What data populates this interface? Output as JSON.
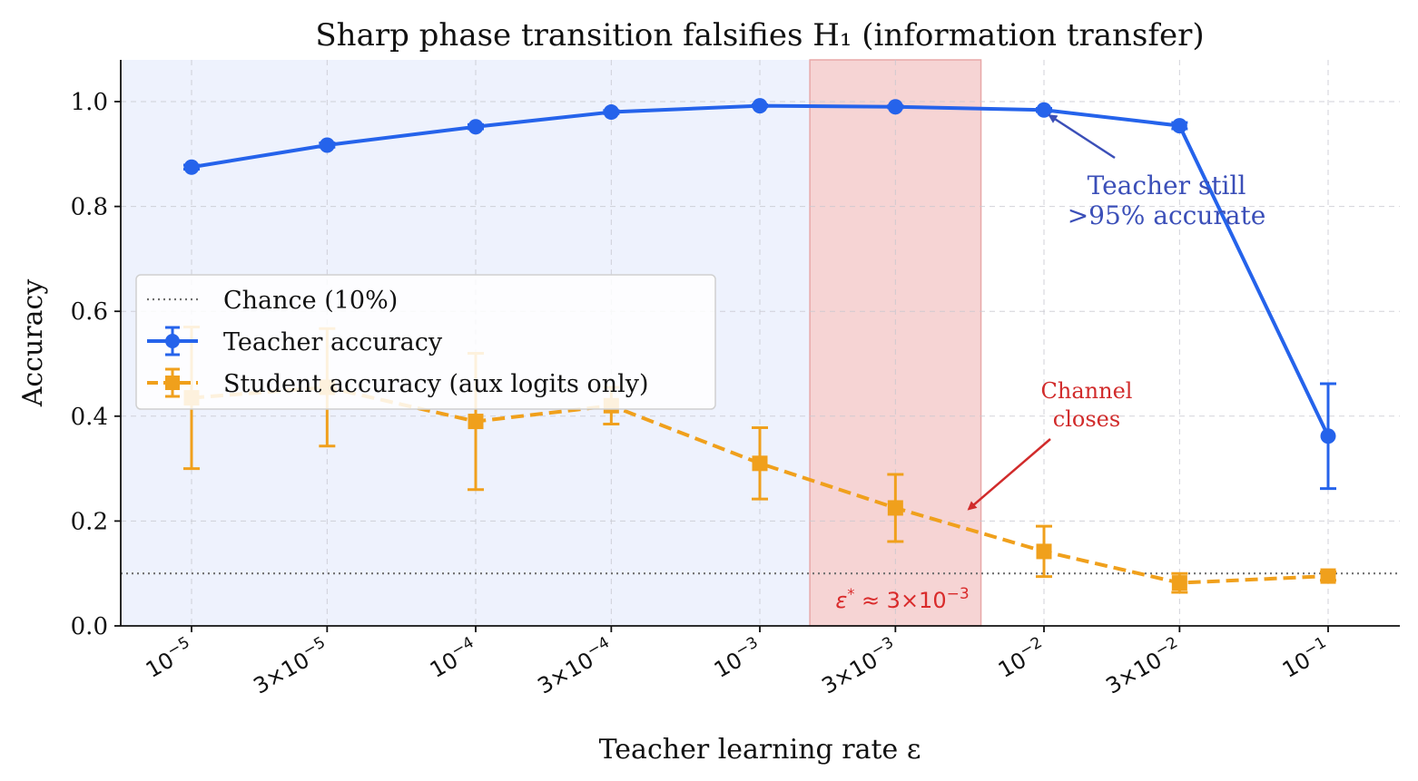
{
  "chart_data": {
    "type": "line",
    "title": "Sharp phase transition falsifies H₁ (information transfer)",
    "xlabel": "Teacher learning rate ε",
    "ylabel": "Accuracy",
    "x_scale": "log",
    "ylim": [
      0.0,
      1.08
    ],
    "grid": true,
    "legend_position": "center-left",
    "x": [
      1e-05,
      3e-05,
      0.0001,
      0.0003,
      0.001,
      0.003,
      0.01,
      0.03,
      0.1
    ],
    "x_tick_labels": [
      {
        "base": "10",
        "exp": "−5"
      },
      {
        "base": "3×10",
        "exp": "−5"
      },
      {
        "base": "10",
        "exp": "−4"
      },
      {
        "base": "3×10",
        "exp": "−4"
      },
      {
        "base": "10",
        "exp": "−3"
      },
      {
        "base": "3×10",
        "exp": "−3"
      },
      {
        "base": "10",
        "exp": "−2"
      },
      {
        "base": "3×10",
        "exp": "−2"
      },
      {
        "base": "10",
        "exp": "−1"
      }
    ],
    "y_ticks": [
      0.0,
      0.2,
      0.4,
      0.6,
      0.8,
      1.0
    ],
    "y_tick_labels": [
      "0.0",
      "0.2",
      "0.4",
      "0.6",
      "0.8",
      "1.0"
    ],
    "series": [
      {
        "name": "Teacher accuracy",
        "color": "#2563eb",
        "marker": "circle",
        "line_style": "solid",
        "values": [
          0.875,
          0.917,
          0.952,
          0.98,
          0.992,
          0.99,
          0.984,
          0.954,
          0.362
        ],
        "error": [
          0.004,
          0.004,
          0.004,
          0.003,
          0.002,
          0.002,
          0.003,
          0.006,
          0.1
        ]
      },
      {
        "name": "Student accuracy (aux logits only)",
        "color": "#f0a01c",
        "marker": "square",
        "line_style": "dashed",
        "values": [
          0.435,
          0.455,
          0.39,
          0.42,
          0.31,
          0.225,
          0.142,
          0.082,
          0.095
        ],
        "error": [
          0.135,
          0.112,
          0.13,
          0.035,
          0.068,
          0.064,
          0.048,
          0.018,
          0.008
        ]
      }
    ],
    "reference_lines": [
      {
        "name": "Chance (10%)",
        "y": 0.1,
        "color": "#707070",
        "line_style": "dotted"
      }
    ],
    "shaded_regions": [
      {
        "x_from": 5e-06,
        "x_to": 0.0015,
        "color": "#eef2fd",
        "label": ""
      },
      {
        "x_from": 0.0015,
        "x_to": 0.006,
        "color": "#f6d4d4",
        "border": "#e8a8a8",
        "label": "ε* ≈ 3×10⁻³"
      }
    ],
    "threshold_label": {
      "prefix": "ε",
      "star": "*",
      "mid": " ≈ 3×10",
      "exp": "−3",
      "color": "#d92b2b"
    },
    "annotations": [
      {
        "id": "teacher",
        "lines": [
          "Teacher still",
          ">95% accurate"
        ],
        "color": "#3b4fb8",
        "arrow_to_x": 0.01,
        "arrow_to_y": 0.984
      },
      {
        "id": "channel",
        "lines": [
          "Channel",
          "closes"
        ],
        "color": "#d12b2b",
        "arrow_to_x": 0.0052,
        "arrow_to_y": 0.233
      }
    ]
  }
}
